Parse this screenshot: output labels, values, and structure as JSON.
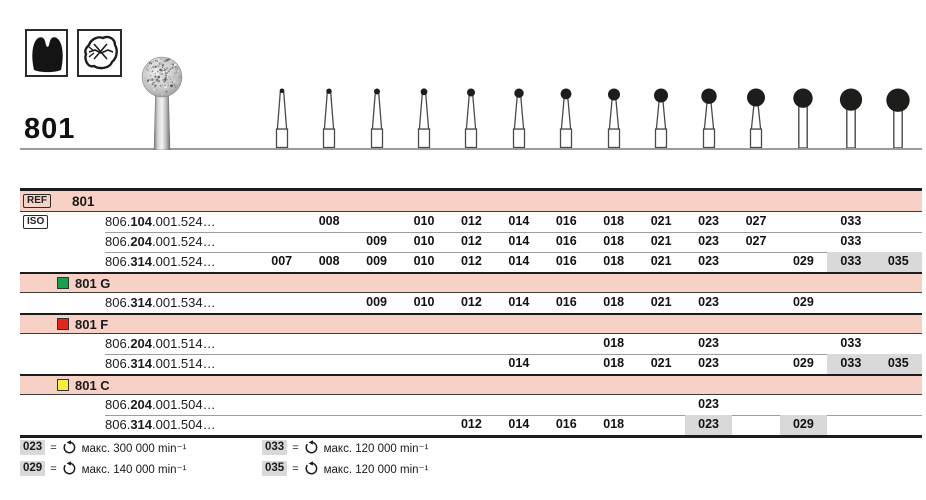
{
  "product": {
    "number": "801",
    "indication_icons": [
      "crown-prep-icon",
      "occlusal-surface-icon"
    ]
  },
  "colors": {
    "row_pink": "#f8d1c6",
    "cell_highlight": "#d9d9d9",
    "grit_green": "#17a04c",
    "grit_red": "#e52520",
    "grit_yellow": "#f8ec3e"
  },
  "size_columns": [
    "007",
    "008",
    "009",
    "010",
    "012",
    "014",
    "016",
    "018",
    "021",
    "023",
    "027",
    "029",
    "033",
    "035"
  ],
  "table": {
    "ref_badge": "REF",
    "iso_badge": "ISO",
    "rows": [
      {
        "type": "ref",
        "label": "801"
      },
      {
        "type": "iso",
        "code": [
          "806.",
          "104",
          ".001.524…"
        ],
        "sizes": [
          "008",
          "010",
          "012",
          "014",
          "016",
          "018",
          "021",
          "023",
          "027",
          "033"
        ],
        "highlight": []
      },
      {
        "type": "iso",
        "code": [
          "806.",
          "204",
          ".001.524…"
        ],
        "sizes": [
          "009",
          "010",
          "012",
          "014",
          "016",
          "018",
          "021",
          "023",
          "027",
          "033"
        ],
        "highlight": []
      },
      {
        "type": "iso",
        "code": [
          "806.",
          "314",
          ".001.524…"
        ],
        "sizes": [
          "007",
          "008",
          "009",
          "010",
          "012",
          "014",
          "016",
          "018",
          "021",
          "023",
          "029",
          "033",
          "035"
        ],
        "highlight": [
          "033",
          "035"
        ]
      },
      {
        "type": "section",
        "label": "801 G",
        "color": "#17a04c"
      },
      {
        "type": "iso",
        "code": [
          "806.",
          "314",
          ".001.534…"
        ],
        "sizes": [
          "009",
          "010",
          "012",
          "014",
          "016",
          "018",
          "021",
          "023",
          "029"
        ],
        "highlight": []
      },
      {
        "type": "section",
        "label": "801 F",
        "color": "#e52520"
      },
      {
        "type": "iso",
        "code": [
          "806.",
          "204",
          ".001.514…"
        ],
        "sizes": [
          "018",
          "023",
          "033"
        ],
        "highlight": []
      },
      {
        "type": "iso",
        "code": [
          "806.",
          "314",
          ".001.514…"
        ],
        "sizes": [
          "014",
          "018",
          "021",
          "023",
          "029",
          "033",
          "035"
        ],
        "highlight": [
          "033",
          "035"
        ]
      },
      {
        "type": "section",
        "label": "801 C",
        "color": "#f8ec3e"
      },
      {
        "type": "iso",
        "code": [
          "806.",
          "204",
          ".001.504…"
        ],
        "sizes": [
          "023"
        ],
        "highlight": []
      },
      {
        "type": "iso",
        "code": [
          "806.",
          "314",
          ".001.504…"
        ],
        "sizes": [
          "012",
          "014",
          "016",
          "018",
          "023",
          "029"
        ],
        "highlight": [
          "023",
          "029"
        ]
      }
    ]
  },
  "legend": [
    {
      "size": "023",
      "max": "макс. 300 000 min⁻¹"
    },
    {
      "size": "029",
      "max": "макс. 140 000 min⁻¹"
    },
    {
      "size": "033",
      "max": "макс. 120 000 min⁻¹"
    },
    {
      "size": "035",
      "max": "макс. 120 000 min⁻¹"
    }
  ]
}
